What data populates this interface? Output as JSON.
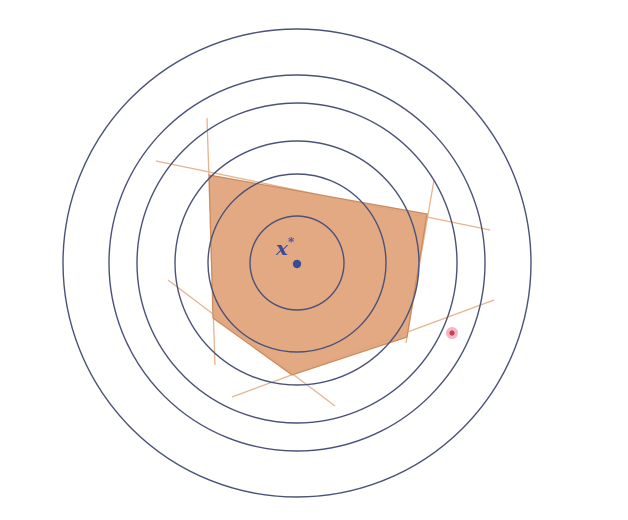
{
  "diagram": {
    "optimum": {
      "label": "x",
      "superscript": "*"
    },
    "contours": {
      "count": 6
    },
    "feasible_region": {
      "constraint_lines": 6
    },
    "colors": {
      "contour_stroke": "#4a5278",
      "region_fill": "#e0a47c",
      "region_stroke": "#c98a5e",
      "constraint_line": "#e6b48f",
      "optimum_point": "#3c4a9a",
      "optimum_label": "#3c4a9a",
      "outside_point_outer": "#f4b8c4",
      "outside_point_inner": "#d23a52"
    }
  }
}
